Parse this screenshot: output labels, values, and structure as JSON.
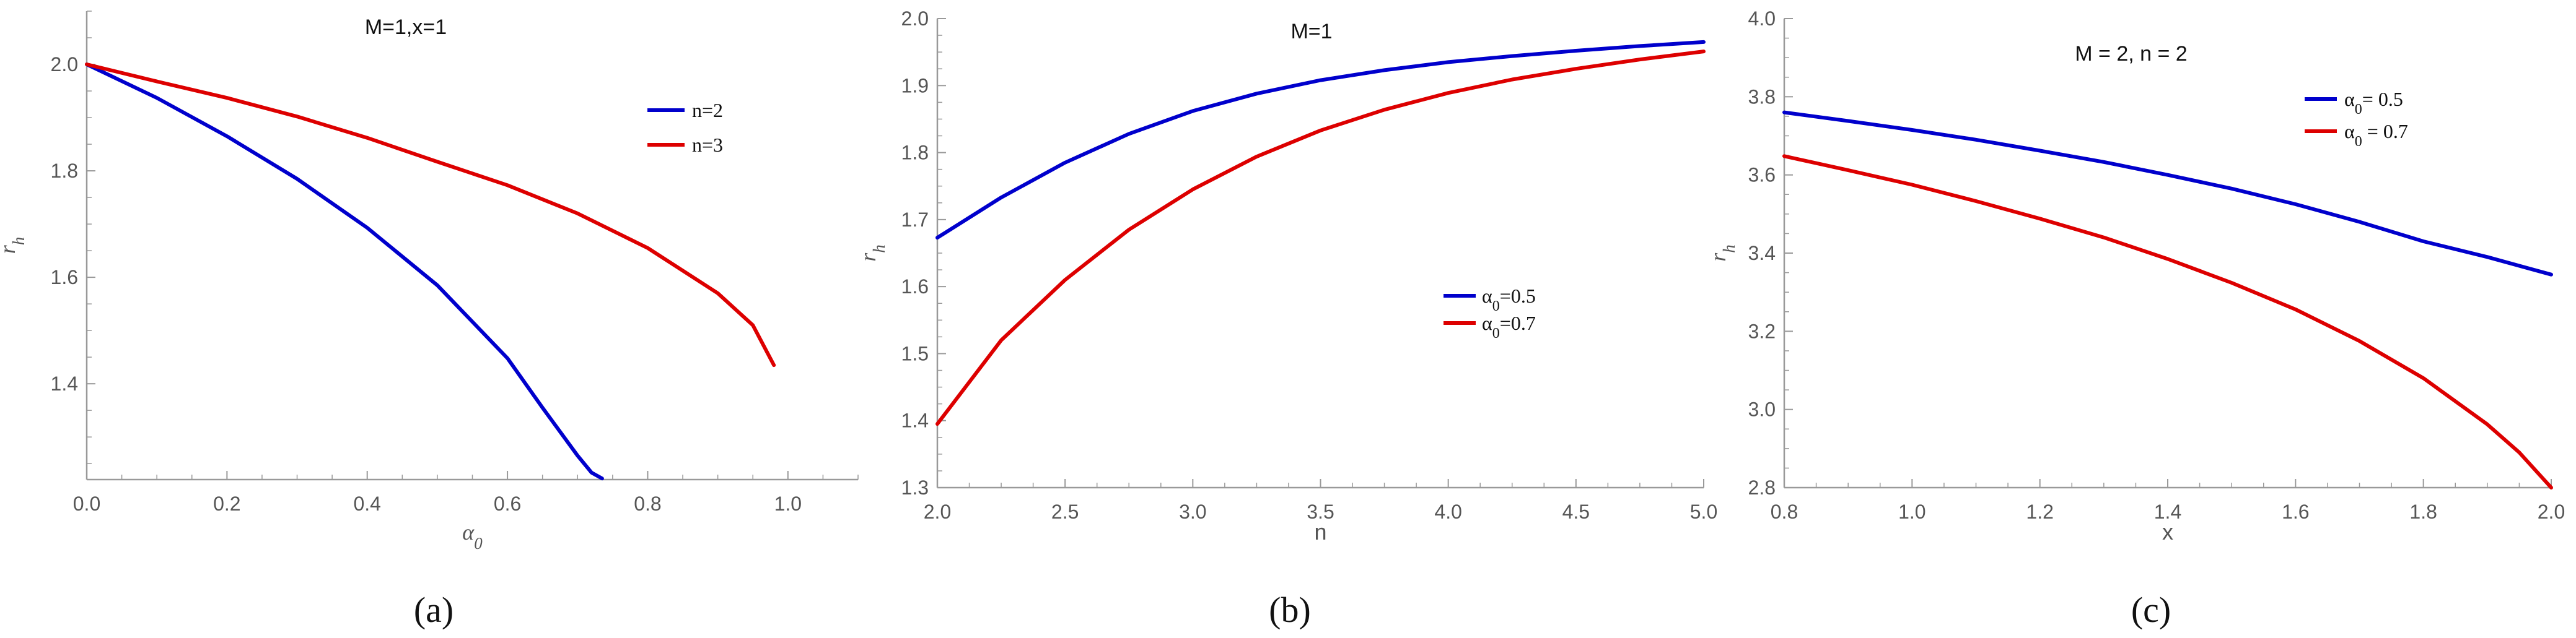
{
  "colors": {
    "blue": "#0000cc",
    "red": "#dd0000",
    "axis": "#999999",
    "text": "#555555"
  },
  "chart_data": [
    {
      "id": "a",
      "type": "line",
      "title": "M=1,x=1",
      "xlabel": "α₀",
      "ylabel": "rₕ",
      "xlim": [
        0,
        1.1
      ],
      "ylim": [
        1.22,
        2.1
      ],
      "xticks": [
        0.0,
        0.2,
        0.4,
        0.6,
        0.8,
        1.0
      ],
      "xtick_labels": [
        "0.0",
        "0.2",
        "0.4",
        "0.6",
        "0.8",
        "1.0"
      ],
      "yticks": [
        1.4,
        1.6,
        1.8,
        2.0
      ],
      "ytick_labels": [
        "1.4",
        "1.6",
        "1.8",
        "2.0"
      ],
      "grid": false,
      "legend_position": "upper-right",
      "caption": "(a)",
      "series": [
        {
          "name": "n=2",
          "color": "#0000cc",
          "x": [
            0.0,
            0.1,
            0.2,
            0.3,
            0.4,
            0.5,
            0.6,
            0.65,
            0.7,
            0.72,
            0.735
          ],
          "y": [
            2.0,
            1.937,
            1.865,
            1.785,
            1.693,
            1.585,
            1.448,
            1.355,
            1.265,
            1.233,
            1.222
          ]
        },
        {
          "name": "n=3",
          "color": "#dd0000",
          "x": [
            0.0,
            0.1,
            0.2,
            0.3,
            0.4,
            0.5,
            0.6,
            0.7,
            0.8,
            0.9,
            0.95,
            0.98
          ],
          "y": [
            2.0,
            1.968,
            1.937,
            1.902,
            1.862,
            1.817,
            1.773,
            1.72,
            1.655,
            1.57,
            1.51,
            1.435
          ]
        }
      ]
    },
    {
      "id": "b",
      "type": "line",
      "title": "M=1",
      "xlabel": "n",
      "ylabel": "rₕ",
      "xlim": [
        2.0,
        5.0
      ],
      "ylim": [
        1.3,
        2.0
      ],
      "xticks": [
        2.0,
        2.5,
        3.0,
        3.5,
        4.0,
        4.5,
        5.0
      ],
      "xtick_labels": [
        "2.0",
        "2.5",
        "3.0",
        "3.5",
        "4.0",
        "4.5",
        "5.0"
      ],
      "yticks": [
        1.3,
        1.4,
        1.5,
        1.6,
        1.7,
        1.8,
        1.9,
        2.0
      ],
      "ytick_labels": [
        "1.3",
        "1.4",
        "1.5",
        "1.6",
        "1.7",
        "1.8",
        "1.9",
        "2.0"
      ],
      "grid": false,
      "legend_position": "center-right",
      "caption": "(b)",
      "series": [
        {
          "name": "α₀=0.5",
          "color": "#0000cc",
          "x": [
            2.0,
            2.25,
            2.5,
            2.75,
            3.0,
            3.25,
            3.5,
            3.75,
            4.0,
            4.25,
            4.5,
            4.75,
            5.0
          ],
          "y": [
            1.673,
            1.733,
            1.785,
            1.828,
            1.862,
            1.888,
            1.908,
            1.923,
            1.935,
            1.944,
            1.952,
            1.959,
            1.965
          ]
        },
        {
          "name": "α₀=0.7",
          "color": "#dd0000",
          "x": [
            2.0,
            2.25,
            2.5,
            2.75,
            3.0,
            3.25,
            3.5,
            3.75,
            4.0,
            4.25,
            4.5,
            4.75,
            5.0
          ],
          "y": [
            1.395,
            1.52,
            1.61,
            1.685,
            1.745,
            1.794,
            1.833,
            1.864,
            1.889,
            1.909,
            1.925,
            1.939,
            1.951
          ]
        }
      ]
    },
    {
      "id": "c",
      "type": "line",
      "title": "M = 2, n = 2",
      "xlabel": "x",
      "ylabel": "rₕ",
      "xlim": [
        0.8,
        2.0
      ],
      "ylim": [
        2.8,
        4.0
      ],
      "xticks": [
        0.8,
        1.0,
        1.2,
        1.4,
        1.6,
        1.8,
        2.0
      ],
      "xtick_labels": [
        "0.8",
        "1.0",
        "1.2",
        "1.4",
        "1.6",
        "1.8",
        "2.0"
      ],
      "yticks": [
        2.8,
        3.0,
        3.2,
        3.4,
        3.6,
        3.8,
        4.0
      ],
      "ytick_labels": [
        "2.8",
        "3.0",
        "3.2",
        "3.4",
        "3.6",
        "3.8",
        "4.0"
      ],
      "grid": false,
      "legend_position": "upper-right",
      "caption": "(c)",
      "series": [
        {
          "name": "α₀= 0.5",
          "color": "#0000cc",
          "x": [
            0.8,
            0.9,
            1.0,
            1.1,
            1.2,
            1.3,
            1.4,
            1.5,
            1.6,
            1.7,
            1.8,
            1.9,
            2.0
          ],
          "y": [
            3.76,
            3.738,
            3.715,
            3.69,
            3.662,
            3.633,
            3.6,
            3.565,
            3.525,
            3.48,
            3.43,
            3.39,
            3.345
          ]
        },
        {
          "name": "α₀ = 0.7",
          "color": "#dd0000",
          "x": [
            0.8,
            0.9,
            1.0,
            1.1,
            1.2,
            1.3,
            1.4,
            1.5,
            1.6,
            1.7,
            1.8,
            1.9,
            1.95,
            2.0
          ],
          "y": [
            3.648,
            3.612,
            3.575,
            3.533,
            3.488,
            3.44,
            3.385,
            3.324,
            3.256,
            3.175,
            3.08,
            2.962,
            2.89,
            2.8
          ]
        }
      ]
    }
  ]
}
